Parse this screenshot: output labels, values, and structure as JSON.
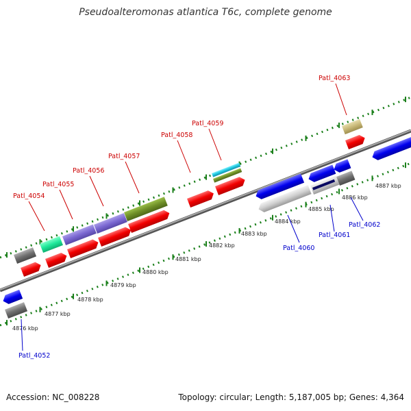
{
  "title": "Pseudoalteromonas atlantica T6c, complete genome",
  "footer": {
    "accession": "Accession: NC_008228",
    "summary": "Topology: circular; Length: 5,187,005 bp; Genes: 4,364"
  },
  "colors": {
    "forward_label": "#cc0000",
    "reverse_label": "#0000cc",
    "backbone": "#8c8c8c",
    "tick": "#1a7f1a"
  },
  "kbp_labels": [
    "4876 kbp",
    "4877 kbp",
    "4878 kbp",
    "4879 kbp",
    "4880 kbp",
    "4881 kbp",
    "4882 kbp",
    "4883 kbp",
    "4884 kbp",
    "4885 kbp",
    "4886 kbp",
    "4887 kbp"
  ],
  "forward_labels": [
    "Patl_4054",
    "Patl_4055",
    "Patl_4056",
    "Patl_4057",
    "Patl_4058",
    "Patl_4059",
    "Patl_4063"
  ],
  "reverse_labels": [
    "Patl_4052",
    "Patl_4060",
    "Patl_4061",
    "Patl_4062"
  ]
}
